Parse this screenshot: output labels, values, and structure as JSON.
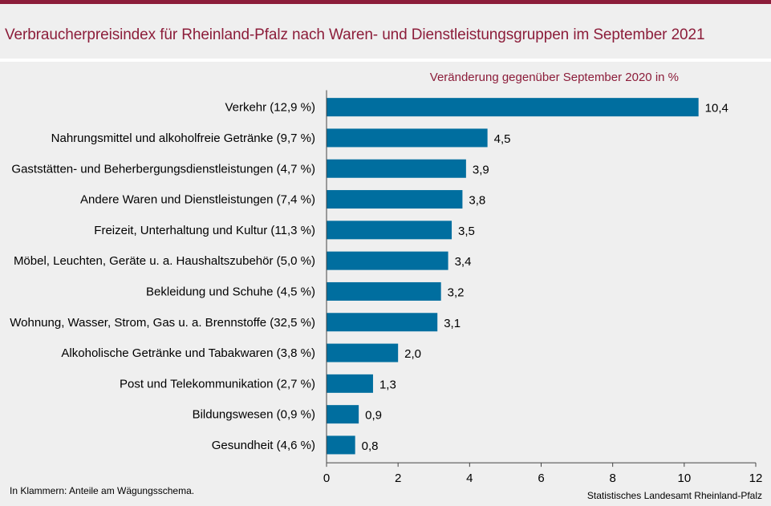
{
  "title": "Verbraucherpreisindex für Rheinland-Pfalz nach Waren- und Dienstleistungsgruppen im September 2021",
  "colors": {
    "accent": "#8c1d3a",
    "bar": "#006e9f",
    "background": "#efefef"
  },
  "chart_data": {
    "type": "bar",
    "orientation": "horizontal",
    "subtitle": "Veränderung  gegenüber September 2020 in %",
    "categories": [
      "Verkehr (12,9 %)",
      "Nahrungsmittel und alkoholfreie Getränke (9,7 %)",
      "Gaststätten- und Beherbergungsdienstleistungen (4,7 %)",
      "Andere Waren und Dienstleistungen (7,4 %)",
      "Freizeit, Unterhaltung und Kultur (11,3 %)",
      "Möbel, Leuchten, Geräte u. a. Haushaltszubehör  (5,0 %)",
      "Bekleidung und Schuhe (4,5 %)",
      "Wohnung, Wasser, Strom, Gas u. a. Brennstoffe (32,5 %)",
      "Alkoholische Getränke und Tabakwaren (3,8 %)",
      "Post und Telekommunikation (2,7 %)",
      "Bildungswesen (0,9 %)",
      "Gesundheit (4,6 %)"
    ],
    "values": [
      10.4,
      4.5,
      3.9,
      3.8,
      3.5,
      3.4,
      3.2,
      3.1,
      2.0,
      1.3,
      0.9,
      0.8
    ],
    "value_labels": [
      "10,4",
      "4,5",
      "3,9",
      "3,8",
      "3,5",
      "3,4",
      "3,2",
      "3,1",
      "2,0",
      "1,3",
      "0,9",
      "0,8"
    ],
    "xlim": [
      0,
      12
    ],
    "xticks": [
      "0",
      "2",
      "4",
      "6",
      "8",
      "10",
      "12"
    ],
    "grid": false,
    "legend": "none"
  },
  "footnote": "In Klammern: Anteile am Wägungsschema.",
  "source": "Statistisches Landesamt Rheinland-Pfalz"
}
